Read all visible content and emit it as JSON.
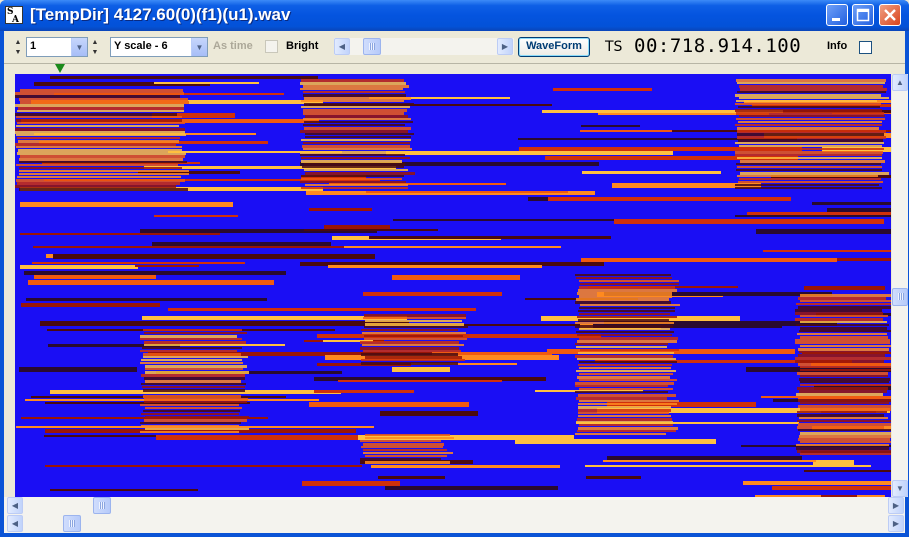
{
  "window": {
    "app_icon_text_top": "S",
    "app_icon_text_bottom": "A",
    "title": "[TempDir] 4127.60(0)(f1)(u1).wav"
  },
  "toolbar": {
    "channel_value": "1",
    "yscale_value": "Y scale - 6",
    "as_time_label": "As time",
    "as_time_checked": false,
    "bright_label": "Bright",
    "bright_checked": false,
    "waveform_label": "WaveForm",
    "ts_label": "TS",
    "ts_value": "00:718.914.100",
    "info_label": "Info",
    "info_checked": false
  },
  "spectrogram": {
    "background_color": "#1A0EF4",
    "palette": [
      "#1A0EF4",
      "#2A0A30",
      "#4A0A10",
      "#9A1508",
      "#D0300A",
      "#F05A10",
      "#FF8A20",
      "#FFC040"
    ]
  },
  "scrollbars": {
    "left_arrow": "left-arrow",
    "right_arrow": "right-arrow",
    "up_arrow": "up-arrow",
    "down_arrow": "down-arrow"
  }
}
